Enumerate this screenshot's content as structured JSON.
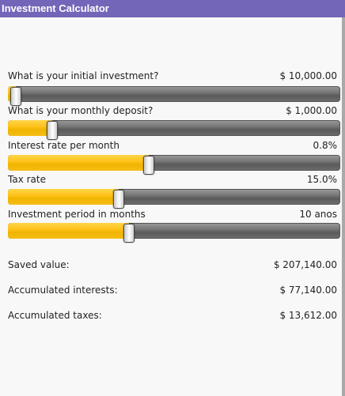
{
  "app": {
    "title": "Investment Calculator"
  },
  "inputs": [
    {
      "label": "What is your initial investment?",
      "value": "$ 10,000.00",
      "fill_fraction": 0.0
    },
    {
      "label": "What is your monthly deposit?",
      "value": "$ 1,000.00",
      "fill_fraction": 0.11
    },
    {
      "label": "Interest rate per month",
      "value": "0.8%",
      "fill_fraction": 0.4
    },
    {
      "label": "Tax rate",
      "value": "15.0%",
      "fill_fraction": 0.31
    },
    {
      "label": "Investment period in months",
      "value": "10 anos",
      "fill_fraction": 0.34
    }
  ],
  "results": [
    {
      "label": "Saved value:",
      "value": "$ 207,140.00"
    },
    {
      "label": "Accumulated interests:",
      "value": "$ 77,140.00"
    },
    {
      "label": "Accumulated taxes:",
      "value": "$ 13,612.00"
    }
  ],
  "colors": {
    "titlebar": "#7365b8",
    "slider_fill": "#ffc21b",
    "slider_track": "#777777"
  }
}
